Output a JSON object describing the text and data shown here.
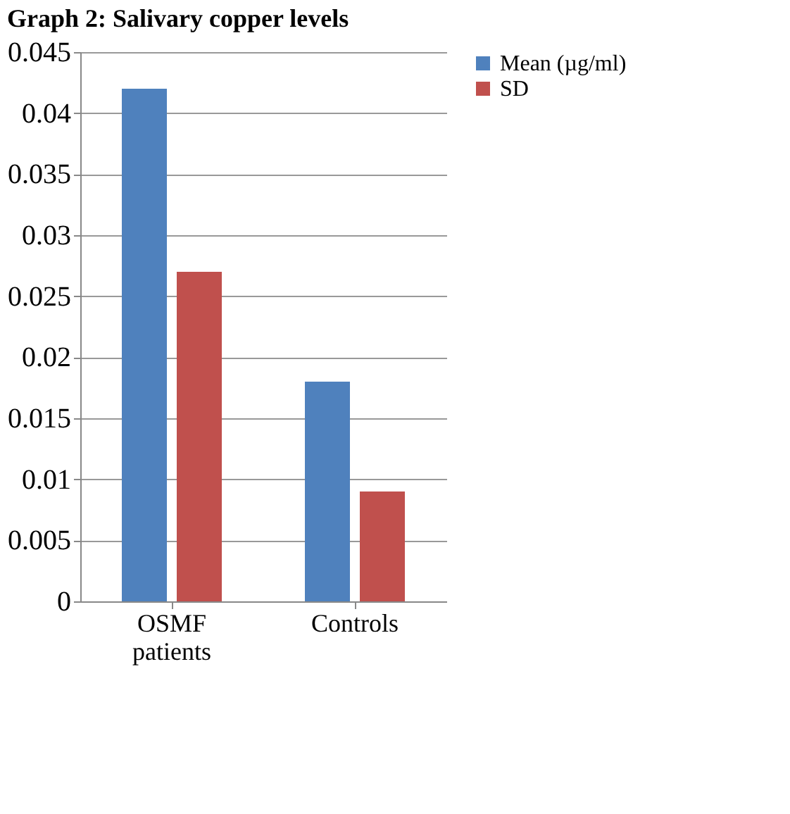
{
  "chart_data": {
    "type": "bar",
    "title": "Graph 2: Salivary copper levels",
    "categories": [
      "OSMF patients",
      "Controls"
    ],
    "series": [
      {
        "name": "Mean  (µg/ml)",
        "color": "#4f81bd",
        "values": [
          0.042,
          0.018
        ]
      },
      {
        "name": "SD",
        "color": "#c0504d",
        "values": [
          0.027,
          0.009
        ]
      }
    ],
    "ylim": [
      0,
      0.045
    ],
    "yticks": [
      0,
      0.005,
      0.01,
      0.015,
      0.02,
      0.025,
      0.03,
      0.035,
      0.04,
      0.045
    ],
    "grid": "y",
    "legend": "right"
  }
}
